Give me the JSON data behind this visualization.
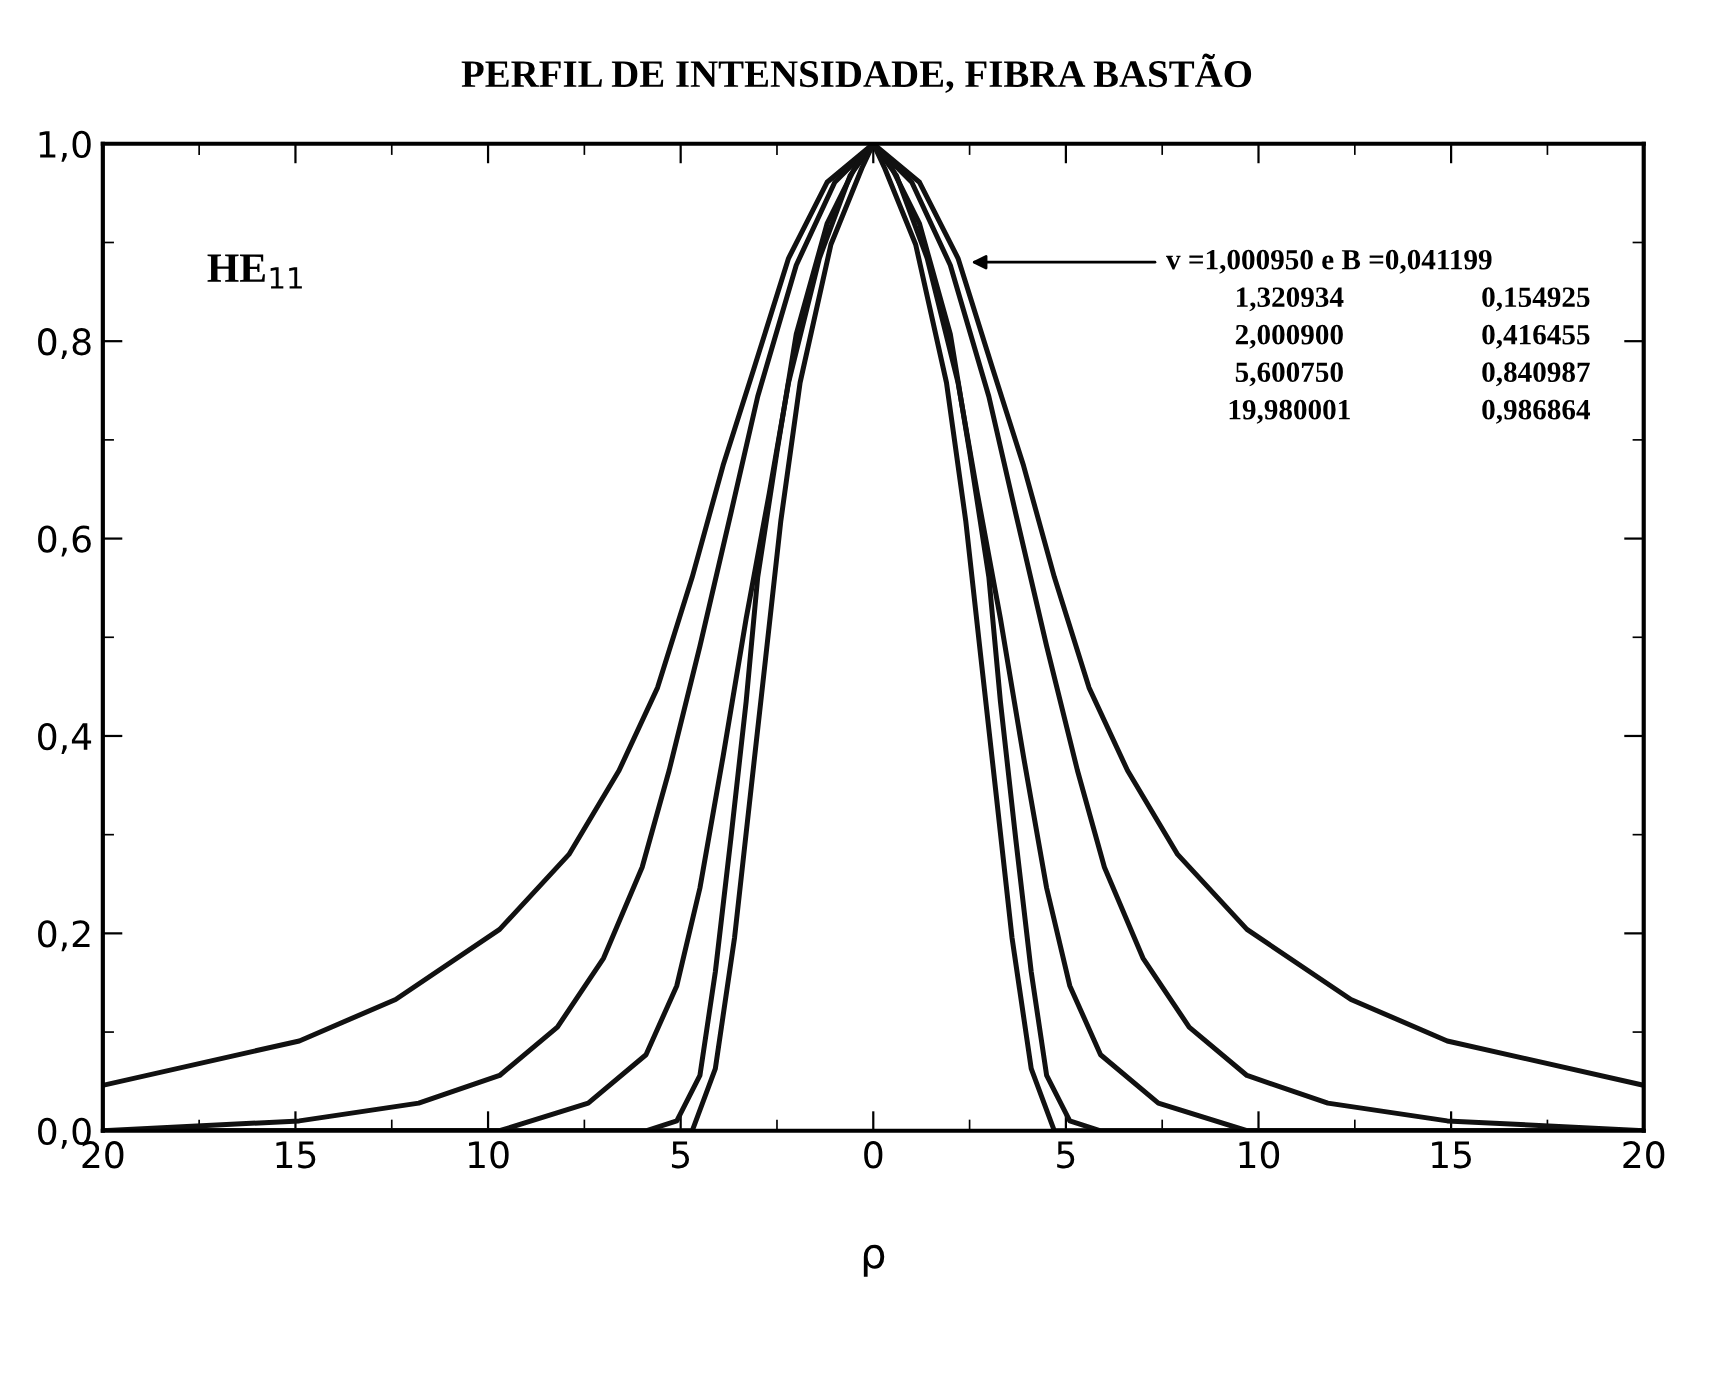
{
  "chart_data": {
    "type": "line",
    "title": "PERFIL DE INTENSIDADE, FIBRA BASTÃO",
    "xlabel": "ρ",
    "series": [
      {
        "color": "#111111",
        "x": [
          -20,
          -14.9,
          -12.4,
          -9.7,
          -7.9,
          -6.6,
          -5.6,
          -4.7,
          -3.9,
          -3.1,
          -2.2,
          -1.2,
          0,
          1.2,
          2.2,
          3.1,
          3.9,
          4.7,
          5.6,
          6.6,
          7.9,
          9.7,
          12.4,
          14.9,
          20
        ],
        "values": [
          0.046,
          0.091,
          0.133,
          0.204,
          0.28,
          0.365,
          0.449,
          0.561,
          0.674,
          0.772,
          0.884,
          0.961,
          1.0,
          0.961,
          0.884,
          0.772,
          0.674,
          0.561,
          0.449,
          0.365,
          0.28,
          0.204,
          0.133,
          0.091,
          0.046
        ]
      },
      {
        "color": "#111111",
        "x": [
          -20,
          -14.9,
          -11.8,
          -9.7,
          -8.2,
          -7.0,
          -6.0,
          -5.3,
          -4.5,
          -3.7,
          -3.0,
          -2.0,
          -1.0,
          0,
          1.0,
          2.0,
          3.0,
          3.7,
          4.5,
          5.3,
          6.0,
          7.0,
          8.2,
          9.7,
          11.8,
          14.9,
          20
        ],
        "values": [
          0.0,
          0.01,
          0.028,
          0.056,
          0.105,
          0.175,
          0.267,
          0.365,
          0.491,
          0.625,
          0.744,
          0.877,
          0.961,
          1.0,
          0.961,
          0.877,
          0.744,
          0.625,
          0.491,
          0.365,
          0.267,
          0.175,
          0.105,
          0.056,
          0.028,
          0.01,
          0.0
        ]
      },
      {
        "color": "#111111",
        "x": [
          -20,
          -9.7,
          -7.4,
          -5.9,
          -5.1,
          -4.5,
          -3.9,
          -3.3,
          -2.7,
          -2.2,
          -1.4,
          -0.6,
          0,
          0.6,
          1.4,
          2.2,
          2.7,
          3.3,
          3.9,
          4.5,
          5.1,
          5.9,
          7.4,
          9.7,
          20
        ],
        "values": [
          0.0,
          0.0,
          0.028,
          0.077,
          0.147,
          0.246,
          0.379,
          0.519,
          0.646,
          0.758,
          0.884,
          0.968,
          1.0,
          0.968,
          0.884,
          0.758,
          0.646,
          0.519,
          0.379,
          0.246,
          0.147,
          0.077,
          0.028,
          0.0,
          0.0
        ]
      },
      {
        "color": "#111111",
        "x": [
          -20,
          -5.9,
          -5.1,
          -4.5,
          -4.1,
          -3.7,
          -3.3,
          -3.0,
          -2.5,
          -2.0,
          -1.2,
          -0.4,
          0,
          0.4,
          1.2,
          2.0,
          2.5,
          3.0,
          3.3,
          3.7,
          4.1,
          4.5,
          5.1,
          5.9,
          20
        ],
        "values": [
          0.0,
          0.0,
          0.01,
          0.056,
          0.161,
          0.295,
          0.435,
          0.561,
          0.688,
          0.807,
          0.919,
          0.982,
          1.0,
          0.982,
          0.919,
          0.807,
          0.688,
          0.561,
          0.435,
          0.295,
          0.161,
          0.056,
          0.01,
          0.0,
          0.0
        ]
      },
      {
        "color": "#111111",
        "x": [
          -20,
          -4.7,
          -4.1,
          -3.6,
          -3.2,
          -2.8,
          -2.4,
          -1.9,
          -1.1,
          -0.3,
          0,
          0.3,
          1.1,
          1.9,
          2.4,
          2.8,
          3.2,
          3.6,
          4.1,
          4.7,
          20
        ],
        "values": [
          0.0,
          0.0,
          0.063,
          0.196,
          0.337,
          0.477,
          0.618,
          0.758,
          0.898,
          0.975,
          1.0,
          0.975,
          0.898,
          0.758,
          0.618,
          0.477,
          0.337,
          0.196,
          0.063,
          0.0,
          0.0
        ]
      }
    ],
    "xlim": [
      -20,
      20
    ],
    "xticks": [
      {
        "value": -20,
        "label": "20"
      },
      {
        "value": -15,
        "label": "15"
      },
      {
        "value": -10,
        "label": "10"
      },
      {
        "value": -5,
        "label": "5"
      },
      0,
      5,
      10,
      15,
      20
    ],
    "ylim": [
      0,
      1
    ],
    "yticks": [
      {
        "value": 0,
        "label": "0,0"
      },
      {
        "value": 0.2,
        "label": "0,2"
      },
      {
        "value": 0.4,
        "label": "0,4"
      },
      {
        "value": 0.6,
        "label": "0,6"
      },
      {
        "value": 0.8,
        "label": "0,8"
      },
      {
        "value": 1.0,
        "label": "1,0"
      }
    ],
    "annotations": [
      {
        "text": "v =1,000950 e B =0,041199",
        "x": 2.4,
        "y": 0.88
      },
      "1,320934",
      "0,154925",
      "2,000900",
      "0,416455",
      "5,600750",
      "0,840987",
      "19,980001",
      "0,986864",
      "HE$_{11}$"
    ],
    "grid": false,
    "legend": false,
    "marker": "none",
    "line_style": "solid"
  }
}
